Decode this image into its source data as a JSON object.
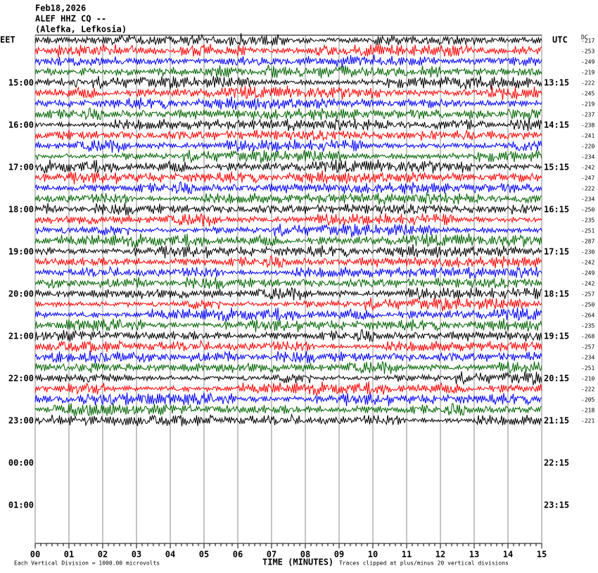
{
  "chart_data": {
    "type": "helicorder",
    "title_lines": [
      "Feb18,2026",
      "ALEF HHZ CQ --",
      "(Alefka, Lefkosia)"
    ],
    "left_zone": "EET",
    "right_zone": "UTC",
    "dc_heading": "DC",
    "left_times": [
      "15:00",
      "16:00",
      "17:00",
      "18:00",
      "19:00",
      "20:00",
      "21:00",
      "22:00",
      "23:00",
      "00:00",
      "01:00"
    ],
    "right_times": [
      "13:15",
      "14:15",
      "15:15",
      "16:15",
      "17:15",
      "18:15",
      "19:15",
      "20:15",
      "21:15",
      "22:15",
      "23:15"
    ],
    "dc_offsets": [
      -217,
      -253,
      -249,
      -219,
      -222,
      -245,
      -219,
      -237,
      -238,
      -241,
      -220,
      -234,
      -242,
      -247,
      -222,
      -234,
      -250,
      -235,
      -251,
      -287,
      -230,
      -242,
      -249,
      -242,
      -257,
      -250,
      -264,
      -235,
      -268,
      -257,
      -234,
      -251,
      -210,
      -222,
      -205,
      -218,
      -221
    ],
    "trace_colors": [
      "#000000",
      "#ff0000",
      "#0000ff",
      "#006400"
    ],
    "x_ticks": [
      "00",
      "01",
      "02",
      "03",
      "04",
      "05",
      "06",
      "07",
      "08",
      "09",
      "10",
      "11",
      "12",
      "13",
      "14",
      "15"
    ],
    "x_label": "TIME (MINUTES)",
    "footer_left": "Each Vertical Division = 1000.00 microvolts",
    "footer_right": "Traces clipped at plus/minus 20 vertical divisions"
  }
}
